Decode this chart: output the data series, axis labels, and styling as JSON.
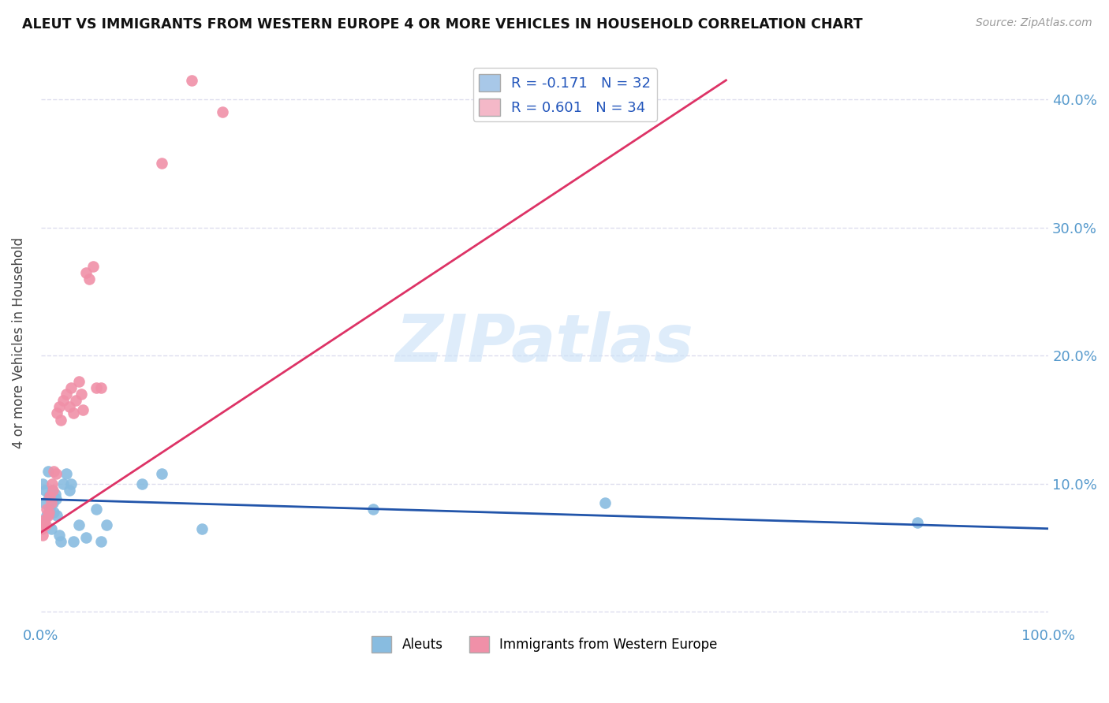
{
  "title": "ALEUT VS IMMIGRANTS FROM WESTERN EUROPE 4 OR MORE VEHICLES IN HOUSEHOLD CORRELATION CHART",
  "source": "Source: ZipAtlas.com",
  "ylabel": "4 or more Vehicles in Household",
  "xlim": [
    0.0,
    1.0
  ],
  "ylim": [
    -0.01,
    0.43
  ],
  "yticks": [
    0.0,
    0.1,
    0.2,
    0.3,
    0.4
  ],
  "ytick_labels_right": [
    "",
    "10.0%",
    "20.0%",
    "30.0%",
    "40.0%"
  ],
  "xticks": [
    0.0,
    0.1,
    0.2,
    0.3,
    0.4,
    0.5,
    0.6,
    0.7,
    0.8,
    0.9,
    1.0
  ],
  "xtick_labels": [
    "0.0%",
    "",
    "",
    "",
    "",
    "",
    "",
    "",
    "",
    "",
    "100.0%"
  ],
  "legend_entries": [
    {
      "label": "R = -0.171   N = 32",
      "facecolor": "#a8c8e8"
    },
    {
      "label": "R = 0.601   N = 34",
      "facecolor": "#f4b8c8"
    }
  ],
  "aleut_color": "#88bce0",
  "immig_color": "#f090a8",
  "aleut_line_color": "#2255aa",
  "immig_line_color": "#dd3366",
  "background_color": "#ffffff",
  "grid_color": "#ddddee",
  "watermark_text": "ZIPatlas",
  "watermark_color": "#d0e4f8",
  "aleut_points_x": [
    0.002,
    0.003,
    0.004,
    0.006,
    0.007,
    0.008,
    0.009,
    0.01,
    0.011,
    0.012,
    0.013,
    0.014,
    0.015,
    0.016,
    0.018,
    0.02,
    0.022,
    0.025,
    0.028,
    0.03,
    0.032,
    0.038,
    0.045,
    0.055,
    0.06,
    0.065,
    0.1,
    0.12,
    0.16,
    0.33,
    0.56,
    0.87
  ],
  "aleut_points_y": [
    0.1,
    0.085,
    0.095,
    0.075,
    0.11,
    0.09,
    0.08,
    0.065,
    0.095,
    0.085,
    0.078,
    0.092,
    0.088,
    0.075,
    0.06,
    0.055,
    0.1,
    0.108,
    0.095,
    0.1,
    0.055,
    0.068,
    0.058,
    0.08,
    0.055,
    0.068,
    0.1,
    0.108,
    0.065,
    0.08,
    0.085,
    0.07
  ],
  "immig_points_x": [
    0.001,
    0.002,
    0.003,
    0.004,
    0.005,
    0.006,
    0.007,
    0.008,
    0.009,
    0.01,
    0.011,
    0.012,
    0.013,
    0.015,
    0.016,
    0.018,
    0.02,
    0.022,
    0.025,
    0.028,
    0.03,
    0.032,
    0.035,
    0.038,
    0.04,
    0.042,
    0.045,
    0.048,
    0.052,
    0.055,
    0.06,
    0.12,
    0.15,
    0.18
  ],
  "immig_points_y": [
    0.065,
    0.06,
    0.07,
    0.072,
    0.068,
    0.08,
    0.075,
    0.078,
    0.09,
    0.085,
    0.1,
    0.095,
    0.11,
    0.108,
    0.155,
    0.16,
    0.15,
    0.165,
    0.17,
    0.16,
    0.175,
    0.155,
    0.165,
    0.18,
    0.17,
    0.158,
    0.265,
    0.26,
    0.27,
    0.175,
    0.175,
    0.35,
    0.415,
    0.39
  ],
  "aleut_line_x": [
    0.0,
    1.0
  ],
  "aleut_line_y": [
    0.088,
    0.065
  ],
  "immig_line_x": [
    0.0,
    0.68
  ],
  "immig_line_y": [
    0.062,
    0.415
  ]
}
